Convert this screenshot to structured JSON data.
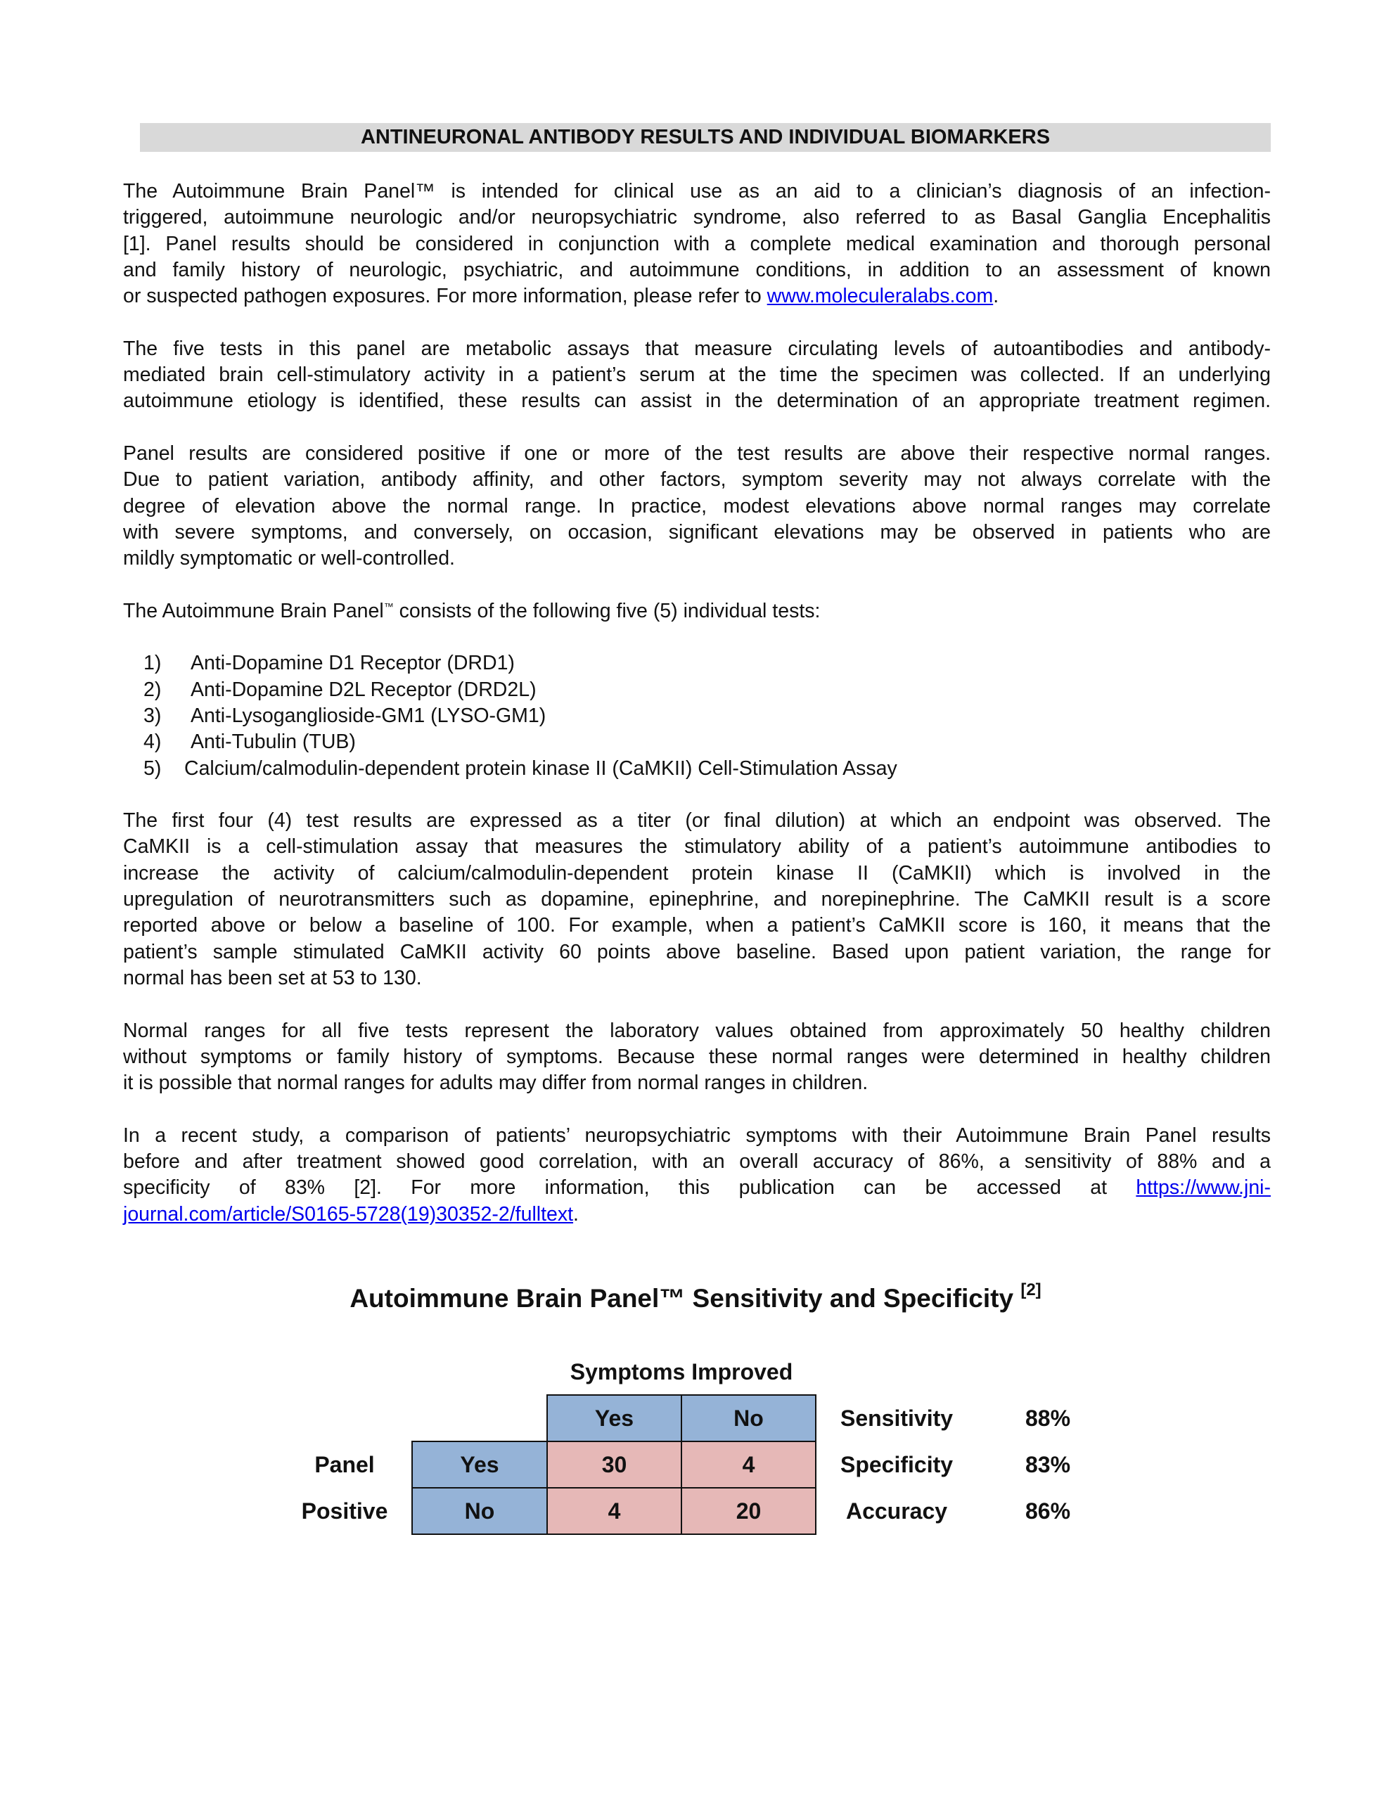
{
  "header": {
    "title": "ANTINEURONAL ANTIBODY RESULTS AND INDIVIDUAL BIOMARKERS"
  },
  "p1": {
    "lines": [
      "The Autoimmune Brain Panel™ is intended for clinical use as an aid to a clinician’s diagnosis of an infection-",
      "triggered, autoimmune neurologic and/or neuropsychiatric syndrome, also referred to as Basal Ganglia Encephalitis",
      "[1].  Panel results should be considered in conjunction with a complete medical examination and thorough personal",
      "and family history of neurologic, psychiatric, and autoimmune conditions, in addition to an assessment of known"
    ],
    "last_text": "or suspected pathogen exposures. For more information, please refer to ",
    "link": "www.moleculeralabs.com",
    "after": "."
  },
  "p2": {
    "lines": [
      "The five tests in this panel are metabolic assays that measure circulating levels of autoantibodies and antibody-",
      "mediated brain cell-stimulatory activity in a patient’s serum at the time the specimen was collected. If an underlying",
      "autoimmune etiology is identified, these results can assist in the determination of an appropriate treatment regimen."
    ]
  },
  "p3": {
    "lines": [
      "Panel results are considered positive if one or more of the test results are above their respective normal ranges.",
      "Due to patient variation, antibody affinity, and other factors, symptom severity may not always correlate with the",
      "degree of elevation above the normal range. In practice, modest elevations above normal ranges may correlate",
      "with severe symptoms, and conversely, on occasion, significant elevations may be observed in patients who are",
      "mildly symptomatic or well-controlled."
    ]
  },
  "p4": {
    "before": "The Autoimmune Brain Panel",
    "tm": "™",
    "after": " consists of the following five (5) individual tests:"
  },
  "tests": [
    {
      "num": "1)",
      "label": "Anti-Dopamine D1 Receptor (DRD1)"
    },
    {
      "num": "2)",
      "label": "Anti-Dopamine D2L Receptor (DRD2L)"
    },
    {
      "num": "3)",
      "label": "Anti-Lysoganglioside-GM1 (LYSO-GM1)"
    },
    {
      "num": "4)",
      "label": "Anti-Tubulin (TUB)"
    },
    {
      "num": "5)",
      "label": "Calcium/calmodulin-dependent protein kinase II (CaMKII) Cell-Stimulation Assay"
    }
  ],
  "p5": {
    "lines": [
      "The first four (4) test results are expressed as a titer (or final dilution) at which an endpoint was observed. The",
      "CaMKII is a cell-stimulation assay that measures the stimulatory ability of a patient’s autoimmune antibodies to",
      "increase the activity of calcium/calmodulin-dependent protein kinase II (CaMKII) which is involved in the",
      "upregulation of neurotransmitters such as dopamine, epinephrine, and norepinephrine. The CaMKII result is a score",
      "reported above or below a baseline of 100.  For example, when a patient’s CaMKII score is 160, it means that the",
      "patient’s sample stimulated CaMKII activity 60 points above baseline. Based upon patient variation, the range for",
      "normal has been set at 53 to 130."
    ]
  },
  "p6": {
    "lines": [
      "Normal ranges for all five tests represent the laboratory values obtained from approximately 50 healthy children",
      "without symptoms or family history of symptoms. Because these normal ranges were determined in healthy children",
      "it is possible that normal ranges for adults may differ from normal ranges in children."
    ]
  },
  "p7": {
    "lines": [
      "In a recent study, a comparison of patients’ neuropsychiatric symptoms with their Autoimmune Brain Panel results",
      "before and after treatment showed good correlation, with an overall accuracy of 86%, a sensitivity of 88% and a"
    ],
    "line3_text": "specificity of 83% [2]. For more information, this publication can be accessed at ",
    "link_part1": "https://www.jni-",
    "link_part2": "journal.com/article/S0165-5728(19)30352-2/fulltext",
    "after": "."
  },
  "table": {
    "title": "Autoimmune Brain Panel™ Sensitivity and Specificity ",
    "title_ref": "[2]",
    "col_group": "Symptoms Improved",
    "col_headers": [
      "Yes",
      "No"
    ],
    "row_group": [
      "Panel",
      "Positive"
    ],
    "row_headers": [
      "Yes",
      "No"
    ],
    "cells": [
      [
        "30",
        "4"
      ],
      [
        "4",
        "20"
      ]
    ],
    "metrics": [
      {
        "label": "Sensitivity",
        "value": "88%"
      },
      {
        "label": "Specificity",
        "value": "83%"
      },
      {
        "label": "Accuracy",
        "value": "86%"
      }
    ],
    "colors": {
      "header": "#95b3d7",
      "cell": "#e6b8b7"
    }
  }
}
